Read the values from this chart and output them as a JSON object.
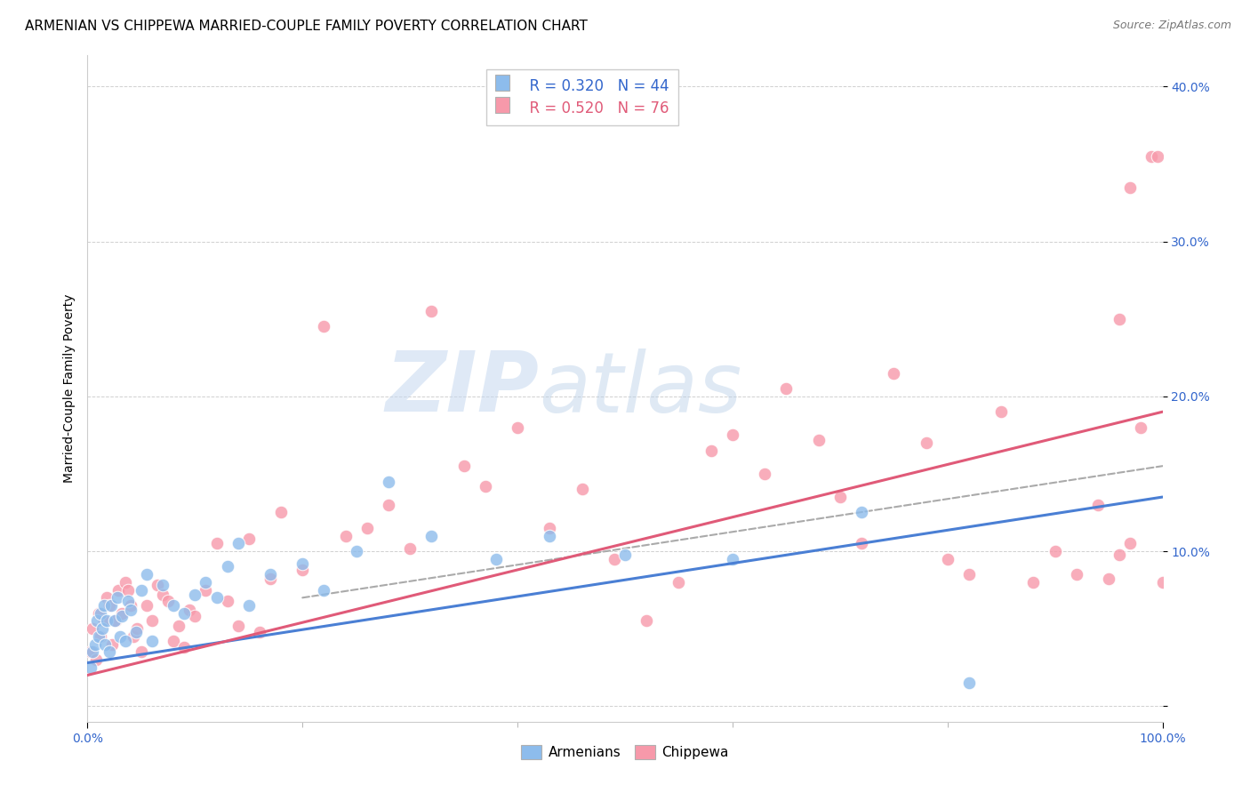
{
  "title": "ARMENIAN VS CHIPPEWA MARRIED-COUPLE FAMILY POVERTY CORRELATION CHART",
  "source": "Source: ZipAtlas.com",
  "ylabel": "Married-Couple Family Poverty",
  "xlabel": "",
  "xlim": [
    0,
    100
  ],
  "ylim": [
    -1,
    42
  ],
  "background_color": "#ffffff",
  "grid_color": "#d0d0d0",
  "watermark_zip": "ZIP",
  "watermark_atlas": "atlas",
  "arm_color": "#8dbcec",
  "chip_color": "#f799aa",
  "arm_line_color": "#4a7fd4",
  "chip_line_color": "#e05a78",
  "dash_line_color": "#aaaaaa",
  "arm_label": "Armenians",
  "chip_label": "Chippewa",
  "arm_R": 0.32,
  "arm_N": 44,
  "chip_R": 0.52,
  "chip_N": 76,
  "arm_line_x0": 0,
  "arm_line_y0": 2.8,
  "arm_line_x1": 100,
  "arm_line_y1": 13.5,
  "chip_line_x0": 0,
  "chip_line_y0": 2.0,
  "chip_line_x1": 100,
  "chip_line_y1": 19.0,
  "dash_line_x0": 20,
  "dash_line_y0": 7.0,
  "dash_line_x1": 100,
  "dash_line_y1": 15.5,
  "armenian_x": [
    0.3,
    0.5,
    0.7,
    0.9,
    1.0,
    1.2,
    1.4,
    1.5,
    1.6,
    1.8,
    2.0,
    2.2,
    2.5,
    2.8,
    3.0,
    3.2,
    3.5,
    3.8,
    4.0,
    4.5,
    5.0,
    5.5,
    6.0,
    7.0,
    8.0,
    9.0,
    10.0,
    11.0,
    12.0,
    13.0,
    14.0,
    15.0,
    17.0,
    20.0,
    22.0,
    25.0,
    28.0,
    32.0,
    38.0,
    43.0,
    50.0,
    60.0,
    72.0,
    82.0
  ],
  "armenian_y": [
    2.5,
    3.5,
    4.0,
    5.5,
    4.5,
    6.0,
    5.0,
    6.5,
    4.0,
    5.5,
    3.5,
    6.5,
    5.5,
    7.0,
    4.5,
    5.8,
    4.2,
    6.8,
    6.2,
    4.8,
    7.5,
    8.5,
    4.2,
    7.8,
    6.5,
    6.0,
    7.2,
    8.0,
    7.0,
    9.0,
    10.5,
    6.5,
    8.5,
    9.2,
    7.5,
    10.0,
    14.5,
    11.0,
    9.5,
    11.0,
    9.8,
    9.5,
    12.5,
    1.5
  ],
  "chippewa_x": [
    0.3,
    0.5,
    0.8,
    1.0,
    1.2,
    1.5,
    1.8,
    2.0,
    2.3,
    2.6,
    2.9,
    3.2,
    3.5,
    3.8,
    4.0,
    4.3,
    4.6,
    5.0,
    5.5,
    6.0,
    6.5,
    7.0,
    7.5,
    8.0,
    8.5,
    9.0,
    9.5,
    10.0,
    11.0,
    12.0,
    13.0,
    14.0,
    15.0,
    16.0,
    17.0,
    18.0,
    20.0,
    22.0,
    24.0,
    26.0,
    28.0,
    30.0,
    32.0,
    35.0,
    37.0,
    40.0,
    43.0,
    46.0,
    49.0,
    52.0,
    55.0,
    58.0,
    60.0,
    63.0,
    65.0,
    68.0,
    70.0,
    72.0,
    75.0,
    78.0,
    80.0,
    82.0,
    85.0,
    88.0,
    90.0,
    92.0,
    94.0,
    96.0,
    97.0,
    98.0,
    99.0,
    99.5,
    100.0,
    97.0,
    96.0,
    95.0
  ],
  "chippewa_y": [
    3.5,
    5.0,
    3.0,
    6.0,
    4.5,
    5.5,
    7.0,
    6.5,
    4.0,
    5.5,
    7.5,
    6.0,
    8.0,
    7.5,
    6.5,
    4.5,
    5.0,
    3.5,
    6.5,
    5.5,
    7.8,
    7.2,
    6.8,
    4.2,
    5.2,
    3.8,
    6.2,
    5.8,
    7.5,
    10.5,
    6.8,
    5.2,
    10.8,
    4.8,
    8.2,
    12.5,
    8.8,
    24.5,
    11.0,
    11.5,
    13.0,
    10.2,
    25.5,
    15.5,
    14.2,
    18.0,
    11.5,
    14.0,
    9.5,
    5.5,
    8.0,
    16.5,
    17.5,
    15.0,
    20.5,
    17.2,
    13.5,
    10.5,
    21.5,
    17.0,
    9.5,
    8.5,
    19.0,
    8.0,
    10.0,
    8.5,
    13.0,
    25.0,
    33.5,
    18.0,
    35.5,
    35.5,
    8.0,
    10.5,
    9.8,
    8.2
  ],
  "yticks": [
    0,
    10,
    20,
    30,
    40
  ],
  "ytick_labels": [
    "",
    "10.0%",
    "20.0%",
    "30.0%",
    "40.0%"
  ],
  "xtick_labels_show": [
    "0.0%",
    "100.0%"
  ],
  "xtick_labels_pos": [
    0,
    100
  ],
  "xtick_minor_pos": [
    20,
    40,
    60,
    80
  ],
  "legend_color": "#3366cc",
  "legend_R_chip_color": "#e05a78",
  "title_fontsize": 11,
  "source_fontsize": 9,
  "axis_label_fontsize": 10,
  "tick_fontsize": 10
}
